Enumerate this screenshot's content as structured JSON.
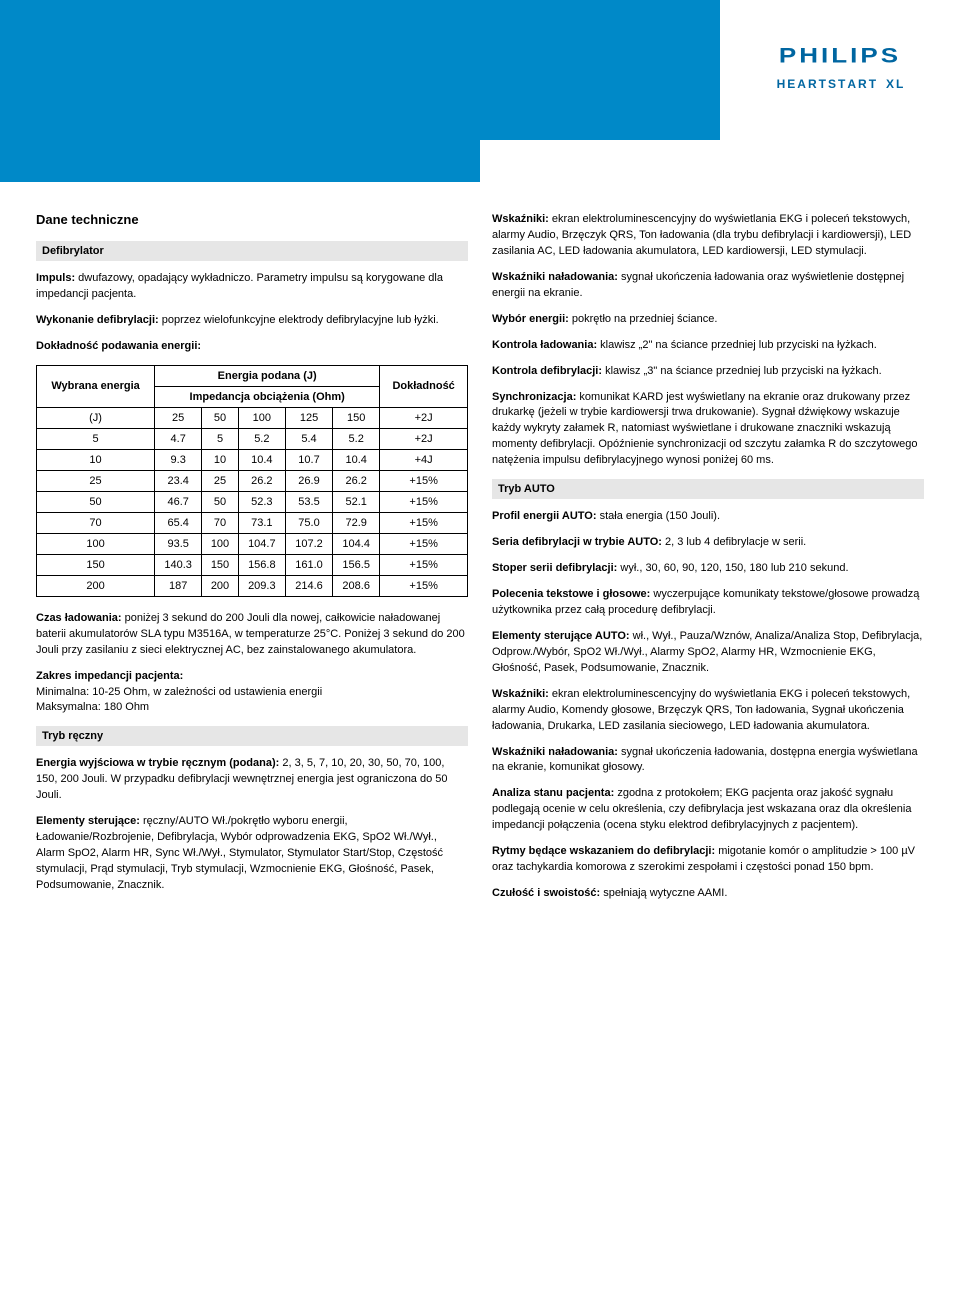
{
  "brand": {
    "logo": "PHILIPS",
    "sub": "HEARTSTART XL"
  },
  "colors": {
    "band": "#0089c8",
    "brand": "#0066a1",
    "subhead_bg": "#e6e6e6"
  },
  "left": {
    "title": "Dane techniczne",
    "sub1": "Defibrylator",
    "p_impuls_b": "Impuls:",
    "p_impuls": " dwufazowy, opadający wykładniczo. Parametry impulsu są korygowane dla impedancji pacjenta.",
    "p_wyk_b": "Wykonanie defibrylacji:",
    "p_wyk": " poprzez wielofunkcyjne elektrody defibrylacyjne lub łyżki.",
    "p_dokl_b": "Dokładność podawania energii:",
    "table": {
      "h_wyb": "Wybrana energia",
      "h_ep": "Energia podana (J)",
      "h_imp": "Impedancja obciążenia (Ohm)",
      "h_dok": "Dokładność",
      "cols": [
        "(J)",
        "25",
        "50",
        "100",
        "125",
        "150",
        "+2J"
      ],
      "rows": [
        [
          "5",
          "4.7",
          "5",
          "5.2",
          "5.4",
          "5.2",
          "+2J"
        ],
        [
          "10",
          "9.3",
          "10",
          "10.4",
          "10.7",
          "10.4",
          "+4J"
        ],
        [
          "25",
          "23.4",
          "25",
          "26.2",
          "26.9",
          "26.2",
          "+15%"
        ],
        [
          "50",
          "46.7",
          "50",
          "52.3",
          "53.5",
          "52.1",
          "+15%"
        ],
        [
          "70",
          "65.4",
          "70",
          "73.1",
          "75.0",
          "72.9",
          "+15%"
        ],
        [
          "100",
          "93.5",
          "100",
          "104.7",
          "107.2",
          "104.4",
          "+15%"
        ],
        [
          "150",
          "140.3",
          "150",
          "156.8",
          "161.0",
          "156.5",
          "+15%"
        ],
        [
          "200",
          "187",
          "200",
          "209.3",
          "214.6",
          "208.6",
          "+15%"
        ]
      ]
    },
    "p_czas_b": "Czas ładowania:",
    "p_czas": " poniżej 3 sekund do 200 Jouli dla nowej, całkowicie naładowanej baterii akumulatorów SLA typu M3516A, w temperaturze 25°C. Poniżej 3 sekund do 200 Jouli przy zasilaniu z sieci elektrycznej AC, bez zainstalowanego akumulatora.",
    "p_zakres_b": "Zakres impedancji pacjenta:",
    "p_zakres_l1": "Minimalna: 10-25 Ohm, w zależności od ustawienia energii",
    "p_zakres_l2": "Maksymalna: 180 Ohm",
    "sub2": "Tryb ręczny",
    "p_ewt_b": "Energia wyjściowa w trybie ręcznym (podana):",
    "p_ewt": " 2, 3, 5, 7, 10, 20, 30, 50, 70, 100, 150, 200 Jouli. W przypadku defibrylacji wewnętrznej energia jest ograniczona do 50 Jouli.",
    "p_elem_b": "Elementy sterujące:",
    "p_elem": " ręczny/AUTO Wł./pokrętło wyboru energii, Ładowanie/Rozbrojenie, Defibrylacja, Wybór odprowadzenia EKG, SpO2 Wł./Wył., Alarm SpO2, Alarm HR, Sync Wł./Wył., Stymulator, Stymulator Start/Stop, Częstość stymulacji, Prąd stymulacji, Tryb stymulacji, Wzmocnienie EKG, Głośność, Pasek, Podsumowanie, Znacznik."
  },
  "right": {
    "p_wsk_b": "Wskaźniki:",
    "p_wsk": " ekran elektroluminescencyjny do wyświetlania EKG i poleceń tekstowych, alarmy Audio, Brzęczyk QRS, Ton ładowania (dla trybu defibrylacji i kardiowersji), LED zasilania AC, LED ładowania akumulatora, LED kardiowersji, LED stymulacji.",
    "p_wskn_b": "Wskaźniki naładowania:",
    "p_wskn": " sygnał ukończenia ładowania oraz wyświetlenie dostępnej energii na ekranie.",
    "p_wyb_b": "Wybór energii:",
    "p_wyb": " pokrętło na przedniej ściance.",
    "p_klad_b": "Kontrola ładowania:",
    "p_klad": " klawisz „2\" na ściance przedniej lub przyciski na łyżkach.",
    "p_kdef_b": "Kontrola defibrylacji:",
    "p_kdef": " klawisz „3\" na ściance przedniej lub przyciski na łyżkach.",
    "p_sync_b": "Synchronizacja:",
    "p_sync": " komunikat KARD jest wyświetlany na ekranie oraz drukowany przez drukarkę (jeżeli w trybie kardiowersji trwa drukowanie). Sygnał dźwiękowy wskazuje każdy wykryty załamek R, natomiast wyświetlane i drukowane znaczniki wskazują momenty defibrylacji. Opóźnienie synchronizacji od szczytu załamka R do szczytowego natężenia impulsu defibrylacyjnego wynosi poniżej 60 ms.",
    "sub1": "Tryb AUTO",
    "p_pea_b": "Profil energii AUTO:",
    "p_pea": " stała energia (150 Jouli).",
    "p_sda_b": "Seria defibrylacji w trybie AUTO:",
    "p_sda": " 2, 3 lub 4 defibrylacje w serii.",
    "p_ssd_b": "Stoper serii defibrylacji:",
    "p_ssd": " wył., 30, 60, 90, 120, 150, 180 lub 210 sekund.",
    "p_ptg_b": "Polecenia tekstowe i głosowe:",
    "p_ptg": " wyczerpujące komunikaty tekstowe/głosowe prowadzą użytkownika przez całą procedurę defibrylacji.",
    "p_esa_b": "Elementy sterujące AUTO:",
    "p_esa": " wł., Wył., Pauza/Wznów, Analiza/Analiza Stop, Defibrylacja, Odprow./Wybór, SpO2 Wł./Wył., Alarmy SpO2, Alarmy HR, Wzmocnienie EKG, Głośność, Pasek, Podsumowanie, Znacznik.",
    "p_wsk2_b": "Wskaźniki:",
    "p_wsk2": " ekran elektroluminescencyjny do wyświetlania EKG i poleceń tekstowych, alarmy Audio, Komendy głosowe, Brzęczyk QRS, Ton ładowania, Sygnał ukończenia ładowania, Drukarka, LED zasilania sieciowego, LED ładowania akumulatora.",
    "p_wskn2_b": "Wskaźniki naładowania:",
    "p_wskn2": " sygnał ukończenia ładowania, dostępna energia wyświetlana na ekranie, komunikat głosowy.",
    "p_asp_b": "Analiza stanu pacjenta:",
    "p_asp": " zgodna z protokołem; EKG pacjenta oraz jakość sygnału podlegają ocenie w celu określenia, czy defibrylacja jest wskazana oraz dla określenia impedancji połączenia (ocena styku elektrod defibrylacyjnych z pacjentem).",
    "p_ryt_b": "Rytmy będące wskazaniem do defibrylacji:",
    "p_ryt": " migotanie komór o amplitudzie > 100 µV oraz tachykardia komorowa z szerokimi zespołami i częstości ponad 150 bpm.",
    "p_czs_b": "Czułość i swoistość:",
    "p_czs": " spełniają wytyczne AAMI."
  }
}
